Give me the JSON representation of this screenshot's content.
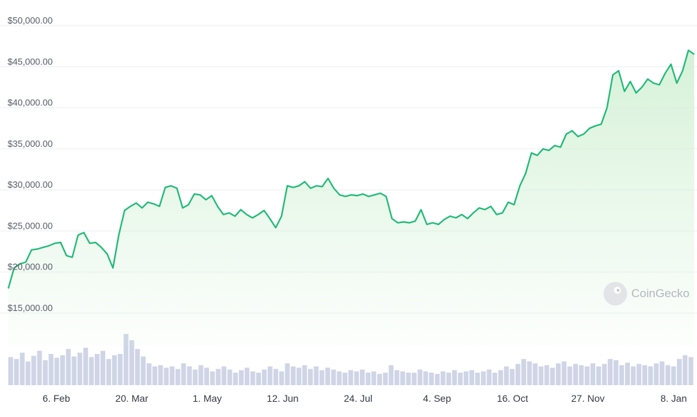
{
  "chart_data": {
    "type": "line",
    "y_ticks": [
      "$15,000.00",
      "$20,000.00",
      "$25,000.00",
      "$30,000.00",
      "$35,000.00",
      "$40,000.00",
      "$45,000.00",
      "$50,000.00"
    ],
    "y_tick_values": [
      15000,
      20000,
      25000,
      30000,
      35000,
      40000,
      45000,
      50000
    ],
    "ylim": [
      14000,
      51000
    ],
    "x_ticks": [
      "6. Feb",
      "20. Mar",
      "1. May",
      "12. Jun",
      "24. Jul",
      "4. Sep",
      "16. Oct",
      "27. Nov",
      "8. Jan"
    ],
    "x_tick_positions": [
      0.07,
      0.18,
      0.29,
      0.4,
      0.51,
      0.625,
      0.735,
      0.845,
      0.97
    ],
    "series": [
      {
        "values": [
          18000,
          20500,
          21000,
          21200,
          22700,
          22800,
          23000,
          23200,
          23500,
          23600,
          22000,
          21800,
          24500,
          24800,
          23500,
          23600,
          23000,
          22200,
          20500,
          24500,
          27500,
          28000,
          28400,
          27800,
          28500,
          28300,
          28000,
          30300,
          30500,
          30200,
          27800,
          28200,
          29500,
          29400,
          28800,
          29300,
          28000,
          27000,
          27200,
          26800,
          27600,
          27000,
          26600,
          27000,
          27500,
          26500,
          25400,
          26800,
          30500,
          30300,
          30500,
          31000,
          30200,
          30500,
          30400,
          31400,
          30200,
          29400,
          29200,
          29400,
          29300,
          29500,
          29200,
          29400,
          29600,
          29200,
          26500,
          26000,
          26100,
          26000,
          26200,
          27600,
          25800,
          26000,
          25800,
          26400,
          26800,
          26600,
          27000,
          26500,
          27200,
          27800,
          27600,
          28000,
          27000,
          27200,
          28500,
          28200,
          30500,
          32000,
          34500,
          34200,
          35000,
          34800,
          35400,
          35200,
          36800,
          37200,
          36500,
          36800,
          37500,
          37800,
          38000,
          40000,
          44000,
          44500,
          42000,
          43200,
          41800,
          42500,
          43500,
          43000,
          42800,
          44200,
          45300,
          43000,
          44500,
          47000,
          46500
        ]
      }
    ],
    "volume": [
      0.45,
      0.42,
      0.52,
      0.38,
      0.47,
      0.55,
      0.4,
      0.5,
      0.44,
      0.48,
      0.58,
      0.46,
      0.52,
      0.6,
      0.45,
      0.5,
      0.55,
      0.42,
      0.48,
      0.5,
      0.82,
      0.72,
      0.58,
      0.46,
      0.35,
      0.3,
      0.32,
      0.28,
      0.3,
      0.26,
      0.35,
      0.3,
      0.25,
      0.32,
      0.28,
      0.22,
      0.26,
      0.3,
      0.25,
      0.2,
      0.24,
      0.28,
      0.22,
      0.2,
      0.25,
      0.3,
      0.26,
      0.22,
      0.35,
      0.3,
      0.28,
      0.32,
      0.26,
      0.3,
      0.24,
      0.28,
      0.25,
      0.22,
      0.2,
      0.24,
      0.22,
      0.25,
      0.2,
      0.22,
      0.18,
      0.2,
      0.32,
      0.24,
      0.22,
      0.2,
      0.2,
      0.25,
      0.22,
      0.2,
      0.18,
      0.22,
      0.2,
      0.24,
      0.2,
      0.22,
      0.24,
      0.2,
      0.22,
      0.25,
      0.2,
      0.24,
      0.3,
      0.26,
      0.34,
      0.42,
      0.38,
      0.35,
      0.3,
      0.32,
      0.28,
      0.35,
      0.38,
      0.3,
      0.34,
      0.32,
      0.3,
      0.35,
      0.3,
      0.34,
      0.42,
      0.4,
      0.32,
      0.36,
      0.3,
      0.34,
      0.32,
      0.3,
      0.35,
      0.38,
      0.32,
      0.3,
      0.42,
      0.48,
      0.45
    ]
  },
  "watermark": {
    "logo_icon": "gecko-logo-icon",
    "text": "CoinGecko"
  }
}
